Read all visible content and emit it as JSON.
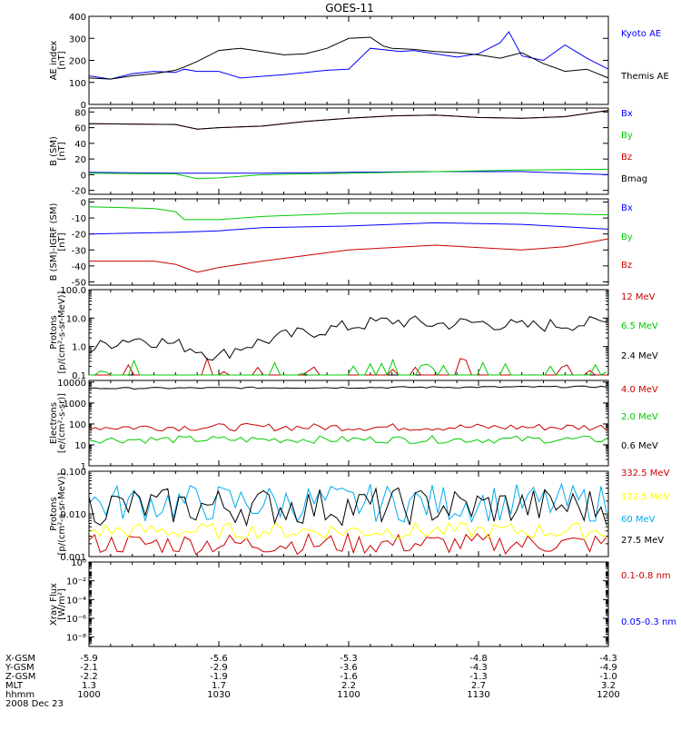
{
  "chart_data": {
    "title": "GOES-11",
    "type": "line",
    "x_axis": {
      "ticks": [
        "1000",
        "1030",
        "1100",
        "1130",
        "1200"
      ],
      "rows": [
        {
          "label": "X-GSM",
          "values": [
            "-5.9",
            "-5.6",
            "-5.3",
            "-4.8",
            "-4.3"
          ]
        },
        {
          "label": "Y-GSM",
          "values": [
            "-2.1",
            "-2.9",
            "-3.6",
            "-4.3",
            "-4.9"
          ]
        },
        {
          "label": "Z-GSM",
          "values": [
            "-2.2",
            "-1.9",
            "-1.6",
            "-1.3",
            "-1.0"
          ]
        },
        {
          "label": "MLT",
          "values": [
            "1.3",
            "1.7",
            "2.2",
            "2.7",
            "3.2"
          ]
        },
        {
          "label": "hhmm",
          "values": [
            "1000",
            "1030",
            "1100",
            "1130",
            "1200"
          ]
        }
      ],
      "date": "2008 Dec 23"
    },
    "panels": [
      {
        "id": "ae",
        "ylabel": [
          "AE index",
          "[nT]"
        ],
        "scale": "linear",
        "ylim": [
          0,
          400
        ],
        "yticks": [
          "0",
          "100",
          "200",
          "300",
          "400"
        ],
        "ytick_values": [
          0,
          100,
          200,
          300,
          400
        ],
        "series": [
          {
            "name": "Kyoto AE",
            "color": "#0000ff",
            "t": [
              0,
              5,
              10,
              15,
              20,
              22,
              25,
              30,
              35,
              45,
              55,
              60,
              65,
              72,
              75,
              80,
              85,
              90,
              95,
              97,
              100,
              105,
              110,
              115,
              120
            ],
            "v": [
              130,
              115,
              140,
              150,
              145,
              160,
              150,
              150,
              120,
              135,
              155,
              160,
              255,
              240,
              245,
              230,
              215,
              230,
              280,
              330,
              220,
              200,
              270,
              210,
              160
            ]
          },
          {
            "name": "Themis AE",
            "color": "#000000",
            "t": [
              0,
              5,
              10,
              15,
              20,
              22,
              25,
              30,
              35,
              40,
              45,
              50,
              55,
              60,
              65,
              68,
              70,
              75,
              80,
              85,
              90,
              95,
              100,
              105,
              110,
              115,
              120
            ],
            "v": [
              120,
              115,
              130,
              140,
              155,
              170,
              195,
              245,
              255,
              240,
              225,
              230,
              255,
              300,
              305,
              265,
              255,
              250,
              240,
              235,
              225,
              210,
              235,
              185,
              150,
              160,
              120
            ]
          }
        ]
      },
      {
        "id": "b",
        "ylabel": [
          "B (SM)",
          "[nT]"
        ],
        "scale": "linear",
        "ylim": [
          -25,
          85
        ],
        "yticks": [
          "-20",
          "0",
          "20",
          "40",
          "60",
          "80"
        ],
        "ytick_values": [
          -20,
          0,
          20,
          40,
          60,
          80
        ],
        "series": [
          {
            "name": "Bx",
            "color": "#0000ff",
            "t": [
              0,
              20,
              40,
              60,
              80,
              100,
              120
            ],
            "v": [
              3,
              2,
              2,
              3,
              4,
              4,
              0
            ]
          },
          {
            "name": "By",
            "color": "#00cc00",
            "t": [
              0,
              20,
              25,
              30,
              40,
              60,
              80,
              100,
              120
            ],
            "v": [
              2,
              1,
              -5,
              -4,
              0,
              2,
              4,
              6,
              7
            ]
          },
          {
            "name": "Bz",
            "color": "#cc0000",
            "t": [
              0,
              20,
              25,
              30,
              40,
              50,
              60,
              70,
              80,
              90,
              100,
              110,
              120
            ],
            "v": [
              65,
              64,
              58,
              60,
              62,
              68,
              72,
              75,
              76,
              73,
              72,
              74,
              82
            ]
          },
          {
            "name": "Bmag",
            "color": "#000000",
            "t": [
              0,
              20,
              25,
              30,
              40,
              50,
              60,
              70,
              80,
              90,
              100,
              110,
              120
            ],
            "v": [
              65,
              64,
              58,
              60,
              62,
              68,
              72,
              75,
              76,
              73,
              72,
              74,
              82
            ]
          }
        ]
      },
      {
        "id": "igrf",
        "ylabel": [
          "B (SM)-IGRF (SM)",
          "[nT]"
        ],
        "scale": "linear",
        "ylim": [
          -52,
          2
        ],
        "yticks": [
          "-50",
          "-40",
          "-30",
          "-20",
          "-10",
          "0"
        ],
        "ytick_values": [
          -50,
          -40,
          -30,
          -20,
          -10,
          0
        ],
        "series": [
          {
            "name": "Bx",
            "color": "#0000ff",
            "t": [
              0,
              20,
              30,
              40,
              60,
              80,
              100,
              120
            ],
            "v": [
              -20,
              -19,
              -18,
              -16,
              -15,
              -13,
              -14,
              -17
            ]
          },
          {
            "name": "By",
            "color": "#00cc00",
            "t": [
              0,
              15,
              20,
              22,
              30,
              40,
              60,
              80,
              100,
              120
            ],
            "v": [
              -3,
              -4,
              -6,
              -11,
              -11,
              -9,
              -7,
              -7,
              -7,
              -8
            ]
          },
          {
            "name": "Bz",
            "color": "#cc0000",
            "t": [
              0,
              15,
              20,
              25,
              30,
              40,
              60,
              80,
              100,
              110,
              120
            ],
            "v": [
              -37,
              -37,
              -39,
              -44,
              -41,
              -37,
              -30,
              -27,
              -30,
              -28,
              -23
            ]
          }
        ]
      },
      {
        "id": "protons_low",
        "ylabel": [
          "Protons",
          "[p/(cm²-s-sr-MeV)]"
        ],
        "scale": "log",
        "ylim": [
          0.1,
          100
        ],
        "yticks": [
          "0.1",
          "1.0",
          "10.0",
          "100.0"
        ],
        "ytick_values": [
          0.1,
          1,
          10,
          100
        ],
        "series": [
          {
            "name": "12 MeV",
            "color": "#cc0000",
            "t": [
              0,
              120
            ],
            "v": [
              0.1,
              0.1
            ]
          },
          {
            "name": "6.5 MeV",
            "color": "#00cc00",
            "t": [
              0,
              120
            ],
            "v": [
              0.1,
              0.1
            ]
          },
          {
            "name": "2.4 MeV",
            "color": "#000000",
            "t": [
              0,
              10,
              20,
              30,
              40,
              50,
              60,
              70,
              80,
              90,
              100,
              110,
              120
            ],
            "v": [
              0.7,
              2.0,
              1.2,
              0.4,
              1.5,
              3.0,
              5.0,
              8.0,
              6.0,
              7.0,
              5.0,
              6.0,
              7.0
            ]
          }
        ]
      },
      {
        "id": "electrons",
        "ylabel": [
          "Electrons",
          "[e/(cm²-s-sr)]"
        ],
        "scale": "log",
        "ylim": [
          1,
          12000
        ],
        "yticks": [
          "1",
          "10",
          "100",
          "1000",
          "10000"
        ],
        "ytick_values": [
          1,
          10,
          100,
          1000,
          10000
        ],
        "series": [
          {
            "name": "4.0 MeV",
            "color": "#cc0000",
            "t": [
              0,
              120
            ],
            "v": [
              70,
              70
            ]
          },
          {
            "name": "2.0 MeV",
            "color": "#00cc00",
            "t": [
              0,
              120
            ],
            "v": [
              18,
              18
            ]
          },
          {
            "name": "0.6 MeV",
            "color": "#000000",
            "t": [
              0,
              120
            ],
            "v": [
              5000,
              6000
            ]
          }
        ]
      },
      {
        "id": "protons_high",
        "ylabel": [
          "Protons",
          "[p/(cm²-s-sr-MeV)]"
        ],
        "scale": "log",
        "ylim": [
          0.001,
          0.1
        ],
        "yticks": [
          "0.001",
          "0.010",
          "0.100"
        ],
        "ytick_values": [
          0.001,
          0.01,
          0.1
        ],
        "series": [
          {
            "name": "332.5 MeV",
            "color": "#cc0000",
            "t": [
              0,
              120
            ],
            "v": [
              0.002,
              0.002
            ]
          },
          {
            "name": "122.5 MeV",
            "color": "#ffff00",
            "t": [
              0,
              120
            ],
            "v": [
              0.004,
              0.004
            ]
          },
          {
            "name": "60 MeV",
            "color": "#00aaee",
            "t": [
              0,
              120
            ],
            "v": [
              0.018,
              0.018
            ]
          },
          {
            "name": "27.5 MeV",
            "color": "#000000",
            "t": [
              0,
              120
            ],
            "v": [
              0.015,
              0.015
            ]
          }
        ]
      },
      {
        "id": "xray",
        "ylabel": [
          "Xray Flux",
          "[W/m²]"
        ],
        "scale": "log",
        "ylim": [
          1e-09,
          1
        ],
        "yticks": [
          "10⁻⁸",
          "10⁻⁶",
          "10⁻⁴",
          "10⁻²",
          "10⁰"
        ],
        "ytick_values": [
          1e-08,
          1e-06,
          0.0001,
          0.01,
          1
        ],
        "series": [
          {
            "name": "0.1-0.8 nm",
            "color": "#cc0000",
            "t": [],
            "v": []
          },
          {
            "name": "0.05-0.3 nm",
            "color": "#0000ff",
            "t": [],
            "v": []
          }
        ]
      }
    ]
  }
}
